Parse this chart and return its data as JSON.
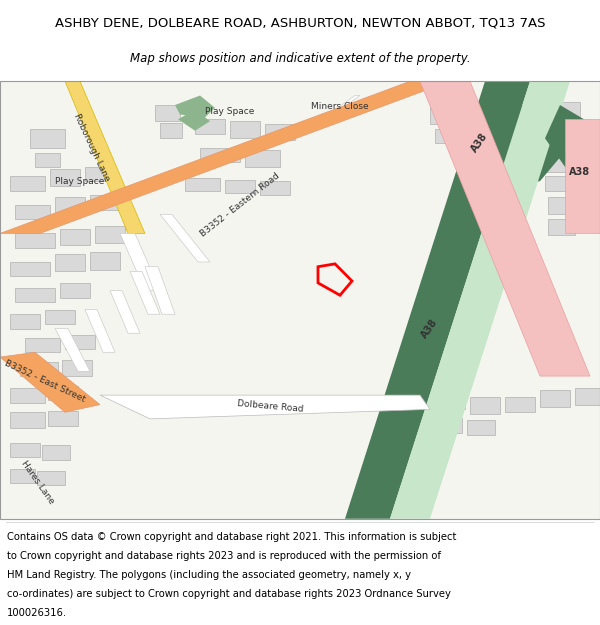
{
  "title_line1": "ASHBY DENE, DOLBEARE ROAD, ASHBURTON, NEWTON ABBOT, TQ13 7AS",
  "title_line2": "Map shows position and indicative extent of the property.",
  "footer_lines": [
    "Contains OS data © Crown copyright and database right 2021. This information is subject",
    "to Crown copyright and database rights 2023 and is reproduced with the permission of",
    "HM Land Registry. The polygons (including the associated geometry, namely x, y",
    "co-ordinates) are subject to Crown copyright and database rights 2023 Ordnance Survey",
    "100026316."
  ],
  "map_bg": "#f5f5f0",
  "building_color": "#d9d9d9",
  "building_edge": "#b0b0b0",
  "road_major_color": "#f4a460",
  "road_major_edge": "#e8956a",
  "road_a38_color": "#f4c0c0",
  "road_a38_edge": "#e8a0a0",
  "green_dark": "#4a7c59",
  "green_light": "#c8e6c9",
  "yellow_road": "#f5d76e",
  "plot_outline_color": "#ff0000",
  "title_fontsize": 9.5,
  "subtitle_fontsize": 8.5,
  "footer_fontsize": 7.2,
  "fig_width": 6.0,
  "fig_height": 6.25
}
